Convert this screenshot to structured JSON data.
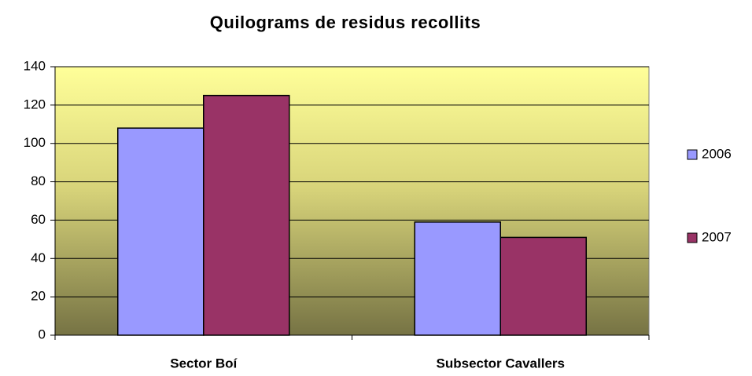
{
  "chart_data": {
    "type": "bar",
    "title": "Quilograms de residus recollits",
    "categories": [
      "Sector Boí",
      "Subsector Cavallers"
    ],
    "series": [
      {
        "name": "2006",
        "color": "#9999ff",
        "values": [
          108,
          59
        ]
      },
      {
        "name": "2007",
        "color": "#993366",
        "values": [
          125,
          51
        ]
      }
    ],
    "ylim": [
      0,
      140
    ],
    "yticks": [
      0,
      20,
      40,
      60,
      80,
      100,
      120,
      140
    ],
    "grid": true,
    "legend": "right"
  }
}
